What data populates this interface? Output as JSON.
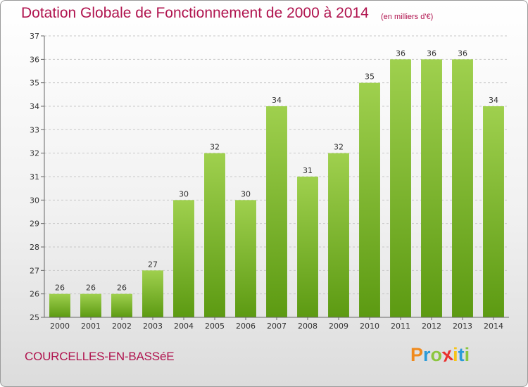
{
  "header": {
    "title": "Dotation Globale de Fonctionnement de 2000 à 2014",
    "unit": "(en milliers d'€)"
  },
  "footer": {
    "commune": "COURCELLES-EN-BASSéE",
    "logo_letters": [
      "P",
      "r",
      "o",
      "x",
      "i",
      "t",
      "i"
    ],
    "logo_colors": [
      "#f08a1c",
      "#2b9bd8",
      "#8cc63f",
      "#e9322e",
      "#f6c417",
      "#2b9bd8",
      "#8cc63f"
    ]
  },
  "chart_data": {
    "type": "bar",
    "title": "Dotation Globale de Fonctionnement de 2000 à 2014",
    "subtitle": "(en milliers d'€)",
    "categories": [
      "2000",
      "2001",
      "2002",
      "2003",
      "2004",
      "2005",
      "2006",
      "2007",
      "2008",
      "2009",
      "2010",
      "2011",
      "2012",
      "2013",
      "2014"
    ],
    "values": [
      26,
      26,
      26,
      27,
      30,
      32,
      30,
      34,
      31,
      32,
      35,
      36,
      36,
      36,
      34
    ],
    "ylim": [
      25,
      37
    ],
    "yticks": [
      25,
      26,
      27,
      28,
      29,
      30,
      31,
      32,
      33,
      34,
      35,
      36,
      37
    ],
    "grid": true,
    "bar_color_top": "#9fd04e",
    "bar_color_bottom": "#5c9a12"
  }
}
